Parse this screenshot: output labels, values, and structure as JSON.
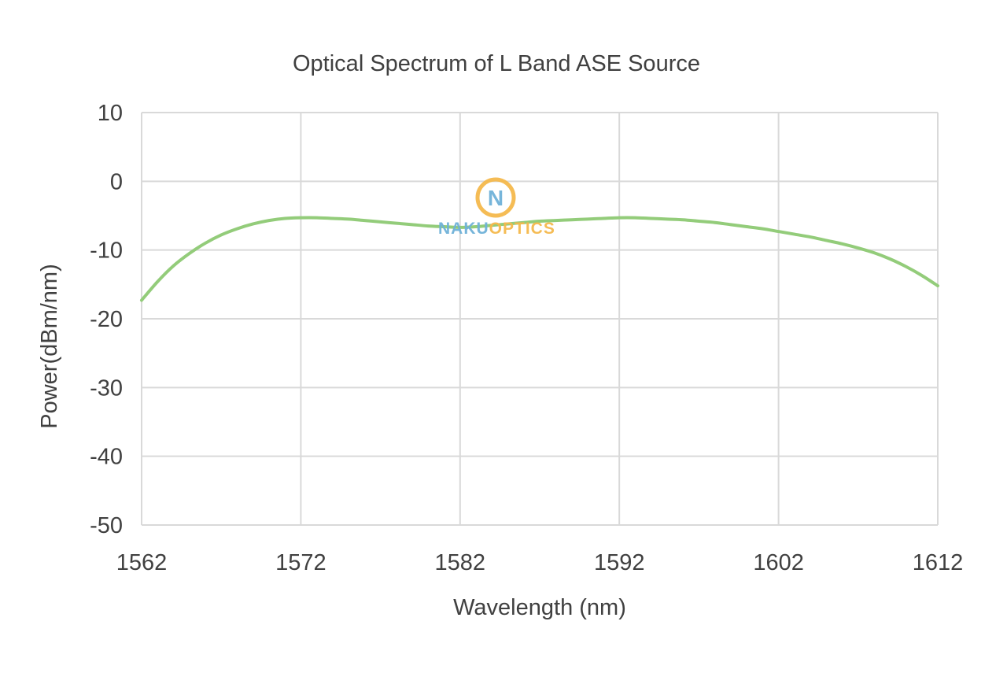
{
  "chart_data": {
    "type": "line",
    "title": "Optical Spectrum of L Band ASE  Source",
    "xlabel": "Wavelength (nm)",
    "ylabel": "Power(dBm/nm)",
    "xlim": [
      1562,
      1612
    ],
    "ylim": [
      -50,
      10
    ],
    "x_ticks": [
      "1562",
      "1572",
      "1582",
      "1592",
      "1602",
      "1612"
    ],
    "y_ticks": [
      "10",
      "0",
      "-10",
      "-20",
      "-30",
      "-40",
      "-50"
    ],
    "grid": true,
    "series": [
      {
        "color": "#93cc7a",
        "x": [
          1562,
          1563,
          1564,
          1565,
          1566,
          1567,
          1568,
          1569,
          1570,
          1571,
          1572,
          1573,
          1574,
          1575,
          1576,
          1577,
          1578,
          1579,
          1580,
          1581,
          1582,
          1583,
          1584,
          1585,
          1586,
          1587,
          1588,
          1589,
          1590,
          1591,
          1592,
          1593,
          1594,
          1595,
          1596,
          1597,
          1598,
          1599,
          1600,
          1601,
          1602,
          1603,
          1604,
          1605,
          1606,
          1607,
          1608,
          1609,
          1610,
          1611,
          1612
        ],
        "y": [
          -17.3,
          -14.6,
          -12.3,
          -10.5,
          -9.0,
          -7.8,
          -6.9,
          -6.2,
          -5.7,
          -5.4,
          -5.3,
          -5.3,
          -5.4,
          -5.5,
          -5.7,
          -5.9,
          -6.1,
          -6.3,
          -6.5,
          -6.6,
          -6.7,
          -6.6,
          -6.4,
          -6.2,
          -6.0,
          -5.8,
          -5.7,
          -5.6,
          -5.5,
          -5.4,
          -5.3,
          -5.3,
          -5.4,
          -5.5,
          -5.6,
          -5.8,
          -6.0,
          -6.3,
          -6.6,
          -6.9,
          -7.3,
          -7.7,
          -8.1,
          -8.6,
          -9.1,
          -9.7,
          -10.4,
          -11.3,
          -12.4,
          -13.7,
          -15.2
        ]
      }
    ]
  },
  "watermark": {
    "glyph": "N",
    "text_part1": "NAKU",
    "text_part2": "OPTICS",
    "color_primary": "#f5b94c",
    "color_secondary": "#6fb2d9"
  }
}
